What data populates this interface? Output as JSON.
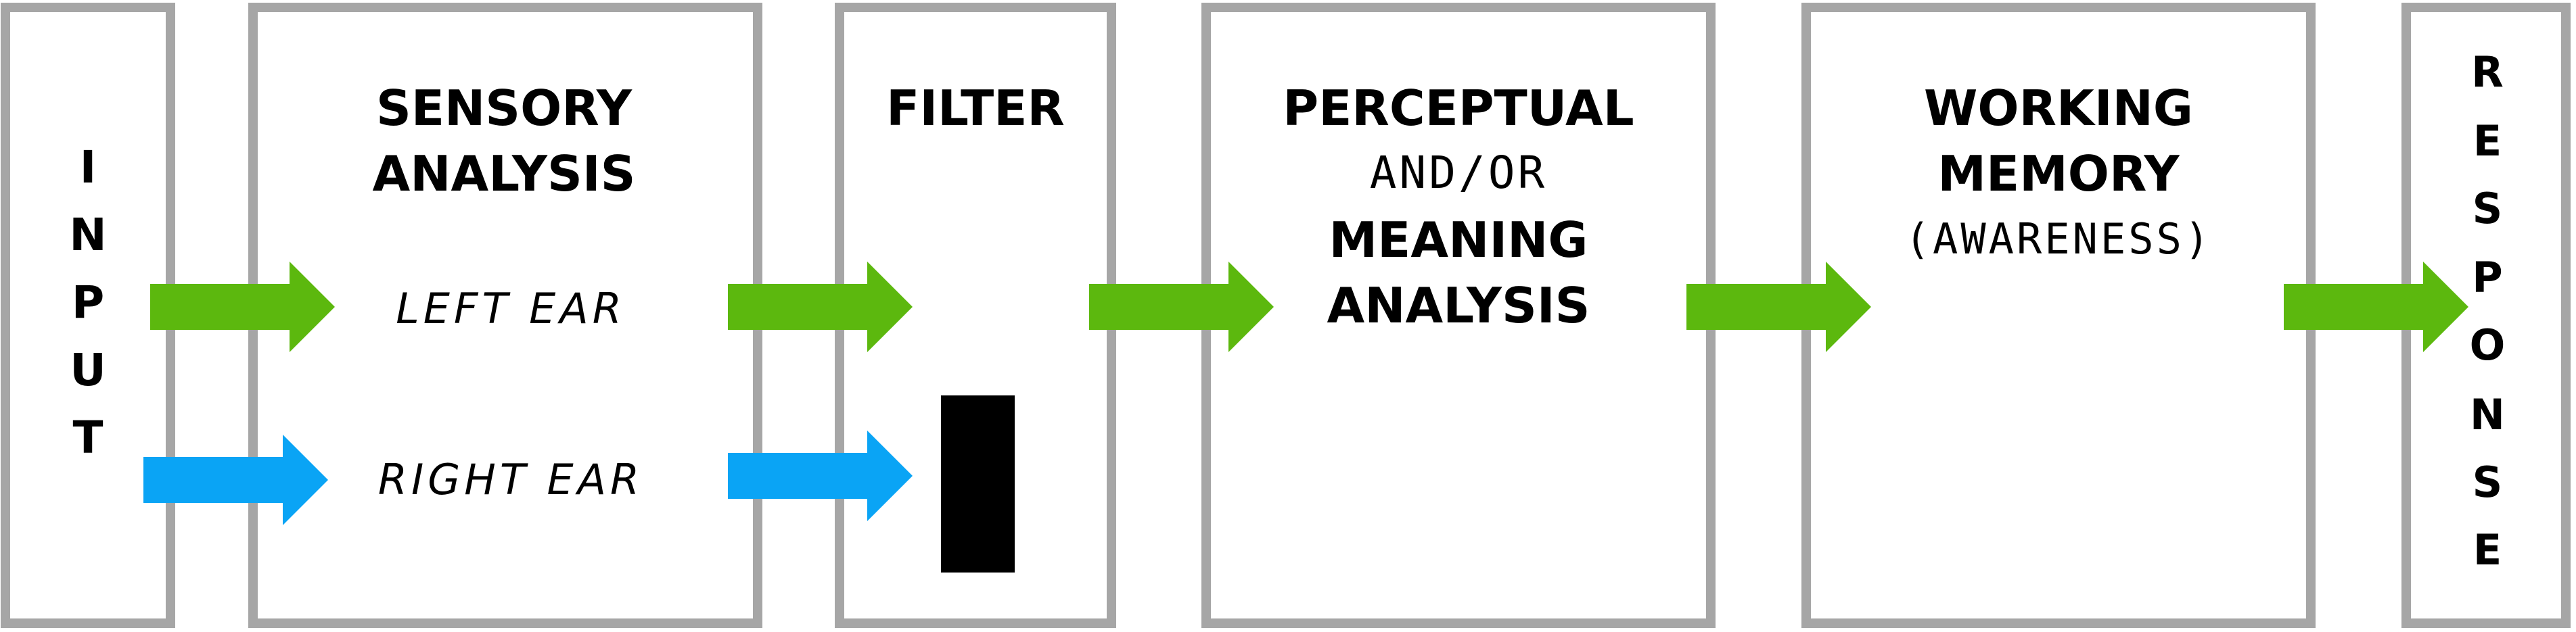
{
  "colors": {
    "box_border": "#a6a6a6",
    "arrow_left_ear": "#5cb80e",
    "arrow_right_ear": "#0aa4f5",
    "filter_block": "#000000",
    "text": "#000000"
  },
  "input": {
    "label": "INPUT",
    "letters": [
      "I",
      "N",
      "P",
      "U",
      "T"
    ]
  },
  "sensory": {
    "title_line1": "SENSORY",
    "title_line2": "ANALYSIS",
    "left_ear": "LEFT EAR",
    "right_ear": "RIGHT EAR"
  },
  "filter": {
    "title": "FILTER"
  },
  "perceptual": {
    "line1": "PERCEPTUAL",
    "line2": "AND/OR",
    "line3": "MEANING",
    "line4": "ANALYSIS"
  },
  "working_memory": {
    "line1": "WORKING",
    "line2": "MEMORY",
    "line3": "(AWARENESS)"
  },
  "response": {
    "label": "RESPONSE",
    "letters": [
      "R",
      "E",
      "S",
      "P",
      "O",
      "N",
      "S",
      "E"
    ]
  }
}
